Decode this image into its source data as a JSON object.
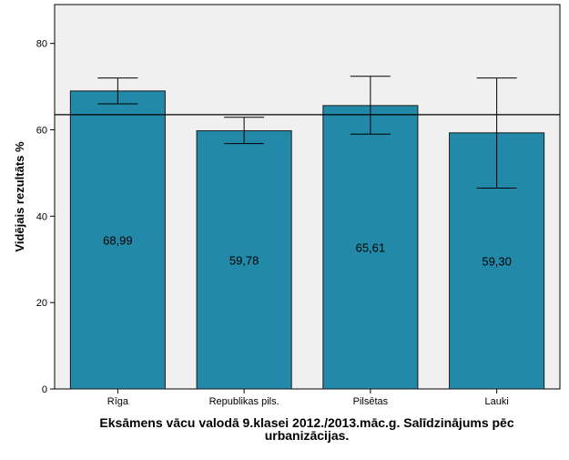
{
  "chart_data": {
    "type": "bar",
    "title_lines": [
      "Eksāmens vācu valodā 9.klasei 2012./2013.māc.g. Salīdzinājums pēc",
      "urbanizācijas."
    ],
    "xlabel": "",
    "ylabel": "Vidējais rezultāts %",
    "categories": [
      "Rīga",
      "Republikas pils.",
      "Pilsētas",
      "Lauki"
    ],
    "values": [
      68.99,
      59.78,
      65.61,
      59.3
    ],
    "value_labels": [
      "68,99",
      "59,78",
      "65,61",
      "59,30"
    ],
    "error_bars": [
      {
        "low": 66.0,
        "high": 72.0
      },
      {
        "low": 56.8,
        "high": 62.9
      },
      {
        "low": 59.0,
        "high": 72.4
      },
      {
        "low": 46.5,
        "high": 72.0
      }
    ],
    "reference_line": 63.5,
    "ylim": [
      0,
      89
    ],
    "yticks": [
      0,
      20,
      40,
      60,
      80
    ],
    "ytick_labels": [
      "0",
      "20",
      "40",
      "60",
      "80"
    ],
    "colors": {
      "bar_fill": "#2389a8",
      "bar_stroke": "#1a1a1a",
      "plot_background": "#f0f0f0",
      "axis": "#000000"
    },
    "grid": false,
    "legend": "none"
  }
}
